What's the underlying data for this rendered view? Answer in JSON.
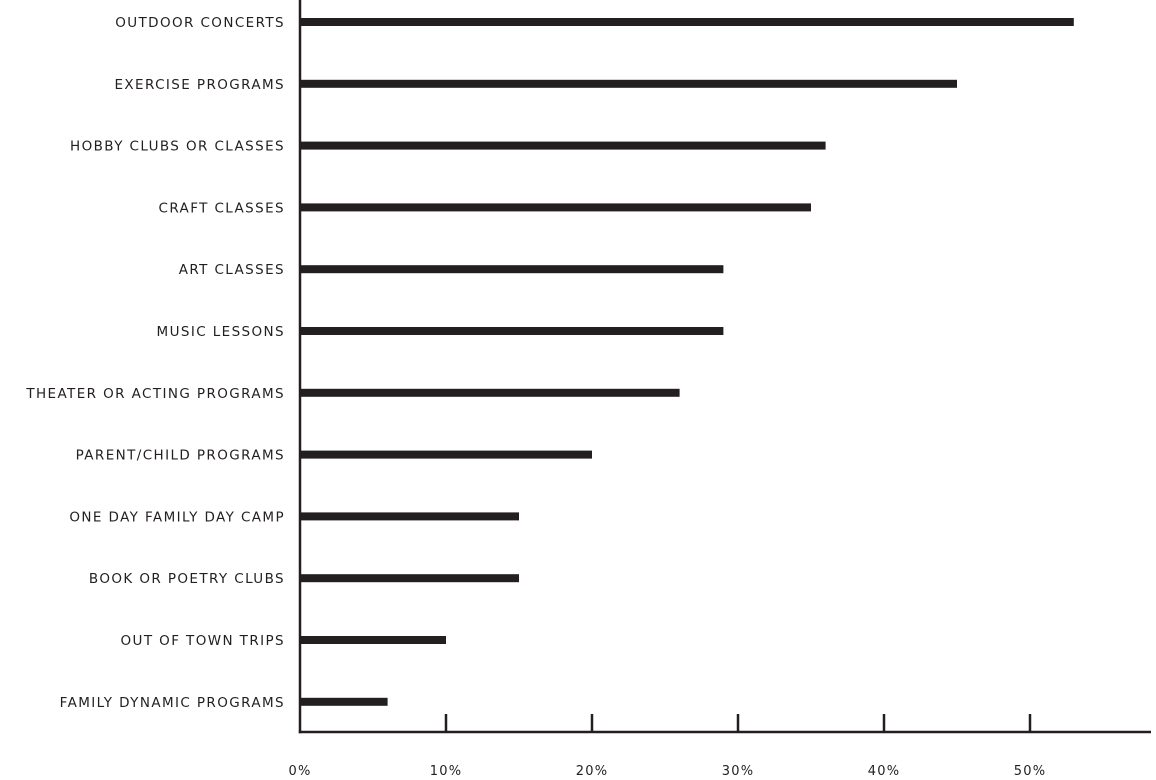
{
  "chart_data": {
    "type": "bar",
    "orientation": "horizontal",
    "categories": [
      "OUTDOOR CONCERTS",
      "EXERCISE PROGRAMS",
      "HOBBY CLUBS OR CLASSES",
      "CRAFT CLASSES",
      "ART CLASSES",
      "MUSIC LESSONS",
      "THEATER OR ACTING PROGRAMS",
      "PARENT/CHILD PROGRAMS",
      "ONE DAY FAMILY DAY CAMP",
      "BOOK OR POETRY CLUBS",
      "OUT OF TOWN TRIPS",
      "FAMILY DYNAMIC PROGRAMS"
    ],
    "values": [
      53,
      45,
      36,
      35,
      29,
      29,
      26,
      20,
      15,
      15,
      10,
      6
    ],
    "xticks": [
      0,
      10,
      20,
      30,
      40,
      50
    ],
    "xtick_labels": [
      "0%",
      "10%",
      "20%",
      "30%",
      "40%",
      "50%"
    ],
    "xlim": [
      0,
      58.5
    ],
    "title": "",
    "xlabel": "",
    "ylabel": "",
    "grid": false,
    "legend": "none",
    "bar_color": "#231f20"
  }
}
